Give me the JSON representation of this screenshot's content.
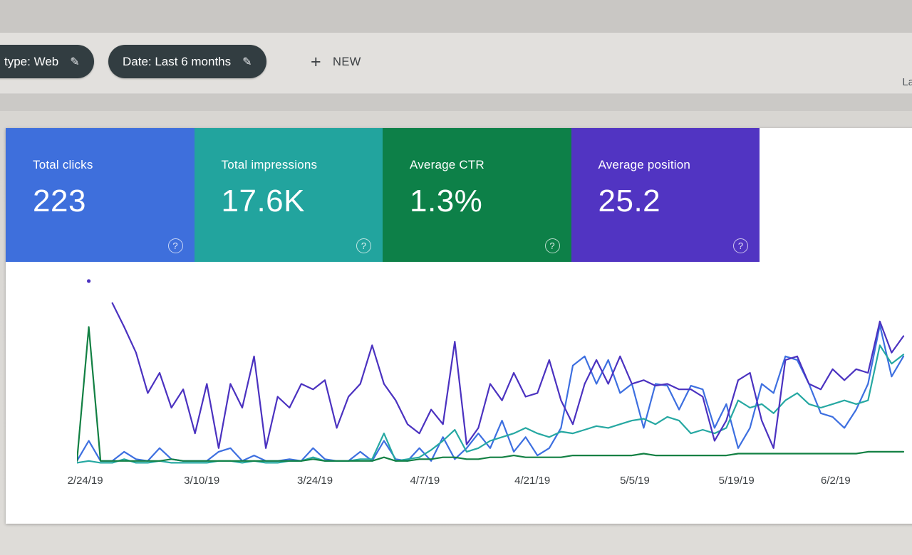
{
  "ui": {
    "help_glyph": "?",
    "edit_glyph": "✎",
    "plus_glyph": "+"
  },
  "filters": {
    "search_type_label": "type: Web",
    "date_label": "Date: Last 6 months",
    "new_label": "NEW",
    "last_updated_partial": "La"
  },
  "tiles": [
    {
      "label": "Total clicks",
      "value": "223",
      "color": "#3e6fdc"
    },
    {
      "label": "Total impressions",
      "value": "17.6K",
      "color": "#22a49e"
    },
    {
      "label": "Average CTR",
      "value": "1.3%",
      "color": "#0d8048"
    },
    {
      "label": "Average position",
      "value": "25.2",
      "color": "#5134c2"
    }
  ],
  "chart_data": {
    "type": "line",
    "grid": false,
    "legend": "none (color-coded to metric tiles)",
    "unit": "percent of plot height, normalized per metric, estimated from pixels",
    "x_ticks": [
      {
        "label": "2/24/19",
        "pos": 0.01
      },
      {
        "label": "3/10/19",
        "pos": 0.151
      },
      {
        "label": "3/24/19",
        "pos": 0.288
      },
      {
        "label": "4/7/19",
        "pos": 0.421
      },
      {
        "label": "4/21/19",
        "pos": 0.551
      },
      {
        "label": "5/5/19",
        "pos": 0.675
      },
      {
        "label": "5/19/19",
        "pos": 0.798
      },
      {
        "label": "6/2/19",
        "pos": 0.918
      }
    ],
    "series": [
      {
        "name": "Total clicks",
        "color": "#3d6fe0",
        "values": [
          2,
          13,
          2,
          2,
          7,
          3,
          2,
          9,
          3,
          2,
          2,
          2,
          7,
          9,
          2,
          5,
          2,
          2,
          3,
          2,
          9,
          3,
          2,
          2,
          7,
          2,
          13,
          3,
          2,
          9,
          2,
          15,
          3,
          9,
          17,
          9,
          24,
          7,
          15,
          5,
          9,
          20,
          54,
          59,
          44,
          57,
          39,
          44,
          20,
          44,
          43,
          30,
          43,
          41,
          20,
          33,
          9,
          20,
          44,
          39,
          59,
          57,
          44,
          28,
          26,
          20,
          30,
          44,
          76,
          48,
          59
        ]
      },
      {
        "name": "Total impressions",
        "color": "#26a8a2",
        "values": [
          1,
          2,
          1,
          1,
          3,
          1,
          1,
          2,
          1,
          1,
          1,
          1,
          2,
          2,
          1,
          2,
          1,
          1,
          2,
          2,
          4,
          2,
          2,
          2,
          3,
          3,
          17,
          2,
          3,
          4,
          8,
          13,
          19,
          7,
          9,
          13,
          15,
          17,
          20,
          17,
          15,
          18,
          17,
          19,
          21,
          20,
          22,
          24,
          25,
          22,
          26,
          24,
          17,
          19,
          17,
          20,
          35,
          31,
          33,
          28,
          35,
          39,
          33,
          31,
          33,
          35,
          33,
          35,
          65,
          55,
          60
        ]
      },
      {
        "name": "Average CTR",
        "color": "#128043",
        "values": [
          2,
          75,
          2,
          2,
          2,
          2,
          2,
          2,
          3,
          2,
          2,
          2,
          2,
          2,
          2,
          2,
          2,
          2,
          2,
          2,
          3,
          2,
          2,
          2,
          2,
          2,
          4,
          2,
          2,
          3,
          3,
          4,
          4,
          3,
          3,
          4,
          4,
          5,
          4,
          4,
          4,
          4,
          5,
          5,
          5,
          5,
          5,
          5,
          6,
          5,
          5,
          5,
          5,
          5,
          5,
          5,
          6,
          6,
          6,
          6,
          6,
          6,
          6,
          6,
          6,
          6,
          6,
          7,
          7,
          7,
          7
        ]
      },
      {
        "name": "Average position",
        "color": "#4b32c0",
        "values": [
          null,
          100,
          null,
          88,
          75,
          61,
          39,
          50,
          31,
          41,
          17,
          44,
          9,
          44,
          31,
          59,
          9,
          37,
          31,
          44,
          41,
          46,
          20,
          37,
          44,
          65,
          44,
          35,
          22,
          17,
          30,
          22,
          67,
          11,
          20,
          44,
          35,
          50,
          37,
          39,
          57,
          35,
          22,
          44,
          57,
          44,
          59,
          44,
          46,
          43,
          44,
          41,
          41,
          37,
          13,
          24,
          46,
          50,
          24,
          9,
          57,
          59,
          44,
          41,
          52,
          46,
          52,
          50,
          78,
          61,
          70
        ]
      }
    ]
  }
}
